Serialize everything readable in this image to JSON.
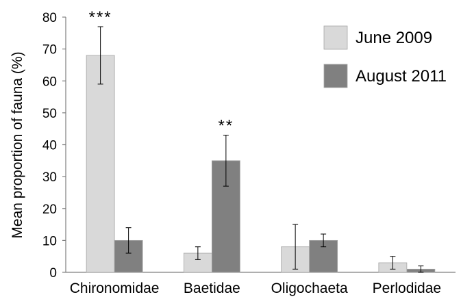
{
  "chart_data": {
    "type": "bar",
    "title": "",
    "xlabel": "",
    "ylabel": "Mean proportion of fauna (%)",
    "ylim": [
      0,
      80
    ],
    "yticks": [
      0,
      10,
      20,
      30,
      40,
      50,
      60,
      70,
      80
    ],
    "grid": false,
    "legend_position": "top-right",
    "categories": [
      "Chironomidae",
      "Baetidae",
      "Oligochaeta",
      "Perlodidae"
    ],
    "series": [
      {
        "name": "June 2009",
        "color": "#d9d9d9",
        "values": [
          68,
          6,
          8,
          3
        ],
        "error_low": [
          59,
          4,
          1,
          1
        ],
        "error_high": [
          77,
          8,
          15,
          5
        ]
      },
      {
        "name": "August 2011",
        "color": "#808080",
        "values": [
          10,
          35,
          10,
          1
        ],
        "error_low": [
          6,
          27,
          8,
          0
        ],
        "error_high": [
          14,
          43,
          12,
          2
        ]
      }
    ],
    "annotations": [
      {
        "category": "Chironomidae",
        "series": 0,
        "text": "***"
      },
      {
        "category": "Baetidae",
        "series": 1,
        "text": "**"
      }
    ]
  }
}
